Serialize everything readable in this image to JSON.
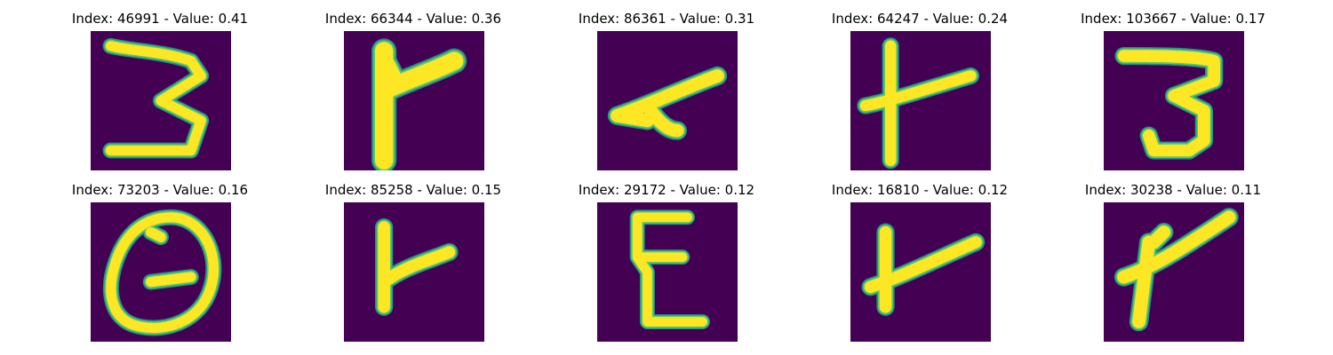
{
  "figure": {
    "colors": {
      "background": "#440154",
      "stroke_edge": "#21918c",
      "stroke_mid": "#5ec962",
      "stroke_core": "#fde725"
    },
    "tiles": [
      {
        "index": 46991,
        "value": 0.41,
        "title": "Index: 46991 - Value: 0.41",
        "glyph": "3"
      },
      {
        "index": 66344,
        "value": 0.36,
        "title": "Index: 66344 - Value: 0.36",
        "glyph": "Y-shape"
      },
      {
        "index": 86361,
        "value": 0.31,
        "title": "Index: 86361 - Value: 0.31",
        "glyph": "sideways-Y"
      },
      {
        "index": 64247,
        "value": 0.24,
        "title": "Index: 64247 - Value: 0.24",
        "glyph": "t-shape"
      },
      {
        "index": 103667,
        "value": 0.17,
        "title": "Index: 103667 - Value: 0.17",
        "glyph": "3"
      },
      {
        "index": 73203,
        "value": 0.16,
        "title": "Index: 73203 - Value: 0.16",
        "glyph": "0"
      },
      {
        "index": 85258,
        "value": 0.15,
        "title": "Index: 85258 - Value: 0.15",
        "glyph": "Y-shape"
      },
      {
        "index": 29172,
        "value": 0.12,
        "title": "Index: 29172 - Value: 0.12",
        "glyph": "E"
      },
      {
        "index": 16810,
        "value": 0.12,
        "title": "Index: 16810 - Value: 0.12",
        "glyph": "t-shape"
      },
      {
        "index": 30238,
        "value": 0.11,
        "title": "Index: 30238 - Value: 0.11",
        "glyph": "slanted-Y"
      }
    ]
  }
}
